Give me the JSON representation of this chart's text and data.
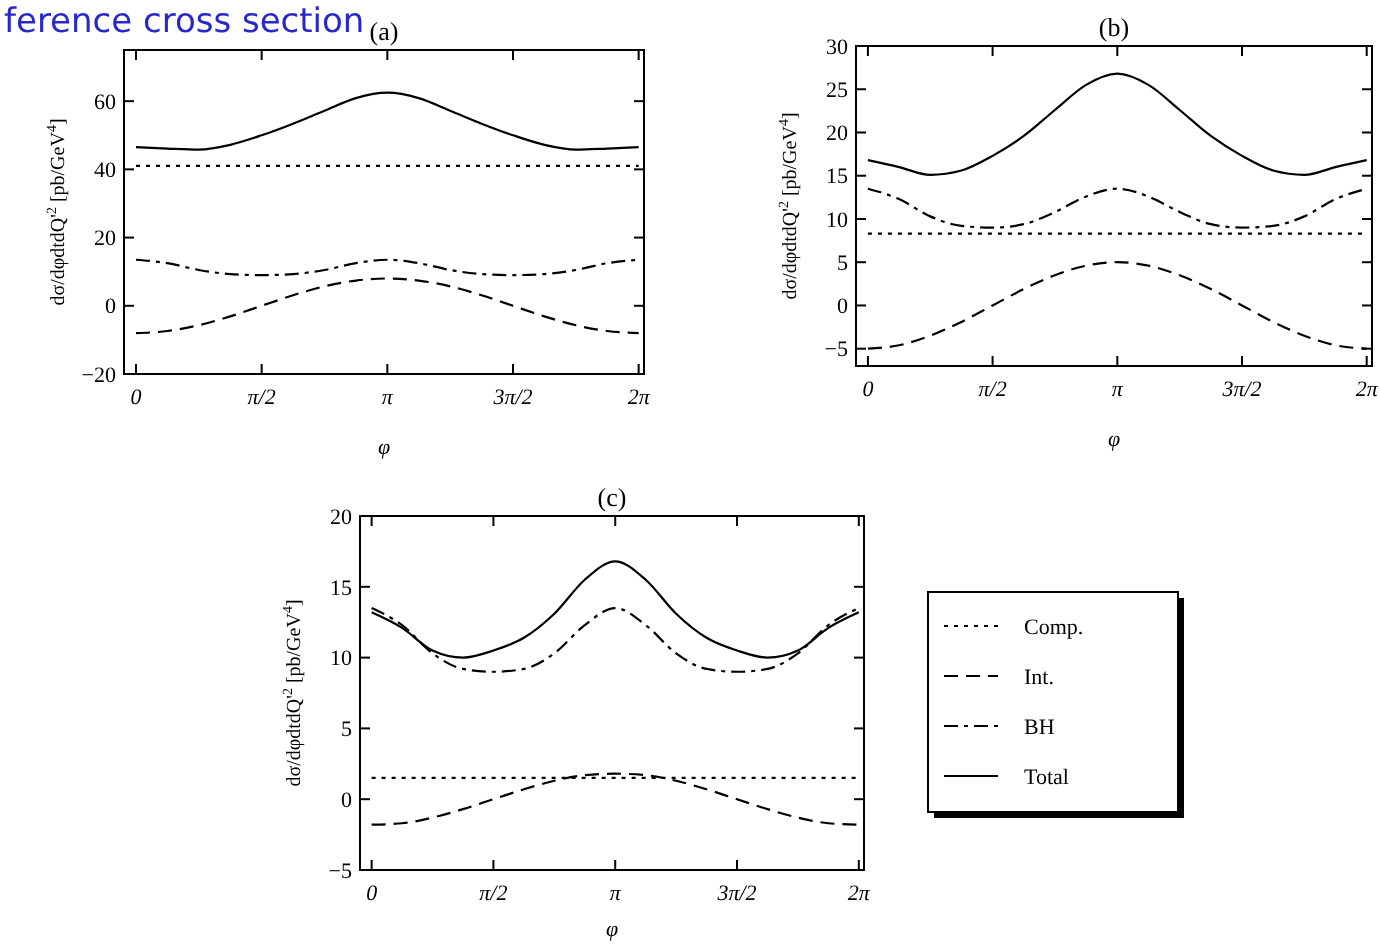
{
  "chart_data": [
    {
      "type": "line",
      "title": "(a)",
      "annotations": [
        "ference cross section"
      ],
      "xlabel": "φ",
      "ylabel": "dσ/dφdtdQ'$^{2}$ [pb/GeV$^{4}$]",
      "x": [
        0,
        0.3927,
        0.7854,
        1.1781,
        1.5708,
        1.9635,
        2.3562,
        2.7489,
        3.1416,
        3.5343,
        3.927,
        4.3197,
        4.7124,
        5.1051,
        5.4978,
        5.8905,
        6.2832
      ],
      "xlim": [
        -0.15,
        6.35
      ],
      "xticks": [
        {
          "value": 0,
          "label": "0"
        },
        {
          "value": 1.5708,
          "label": "π/2"
        },
        {
          "value": 3.1416,
          "label": "π"
        },
        {
          "value": 4.7124,
          "label": "3π/2"
        },
        {
          "value": 6.2832,
          "label": "2π"
        }
      ],
      "ylim": [
        -20,
        75
      ],
      "yticks": [
        -20,
        0,
        20,
        40,
        60
      ],
      "grid": false,
      "legend": false,
      "series": [
        {
          "color": "#000000",
          "line_style": "dotted",
          "values": [
            41,
            41,
            41,
            41,
            41,
            41,
            41,
            41,
            41,
            41,
            41,
            41,
            41,
            41,
            41,
            41,
            41
          ]
        },
        {
          "color": "#000000",
          "line_style": "dashed",
          "values": [
            -8,
            -7.4,
            -5.7,
            -3.1,
            0,
            3.1,
            5.7,
            7.4,
            8,
            7.4,
            5.7,
            3.1,
            0,
            -3.1,
            -5.7,
            -7.4,
            -8
          ]
        },
        {
          "color": "#000000",
          "line_style": "dashdot",
          "values": [
            13.5,
            12.5,
            10.5,
            9.3,
            9,
            9.3,
            10.5,
            12.5,
            13.5,
            12.5,
            10.5,
            9.3,
            9,
            9.3,
            10.5,
            12.5,
            13.5
          ]
        },
        {
          "color": "#000000",
          "line_style": "solid",
          "values": [
            46.5,
            46.1,
            45.8,
            47.2,
            50,
            53.4,
            57.2,
            60.9,
            62.5,
            60.9,
            57.2,
            53.4,
            50,
            47.2,
            45.8,
            46.1,
            46.5
          ]
        }
      ]
    },
    {
      "type": "line",
      "title": "(b)",
      "xlabel": "φ",
      "ylabel": "dσ/dφdtdQ'$^{2}$ [pb/GeV$^{4}$]",
      "x": [
        0,
        0.3927,
        0.7854,
        1.1781,
        1.5708,
        1.9635,
        2.3562,
        2.7489,
        3.1416,
        3.5343,
        3.927,
        4.3197,
        4.7124,
        5.1051,
        5.4978,
        5.8905,
        6.2832
      ],
      "xlim": [
        -0.15,
        6.35
      ],
      "xticks": [
        {
          "value": 0,
          "label": "0"
        },
        {
          "value": 1.5708,
          "label": "π/2"
        },
        {
          "value": 3.1416,
          "label": "π"
        },
        {
          "value": 4.7124,
          "label": "3π/2"
        },
        {
          "value": 6.2832,
          "label": "2π"
        }
      ],
      "ylim": [
        -7,
        30
      ],
      "yticks": [
        -5,
        0,
        5,
        10,
        15,
        20,
        25,
        30
      ],
      "grid": false,
      "legend": false,
      "series": [
        {
          "color": "#000000",
          "line_style": "dotted",
          "values": [
            8.3,
            8.3,
            8.3,
            8.3,
            8.3,
            8.3,
            8.3,
            8.3,
            8.3,
            8.3,
            8.3,
            8.3,
            8.3,
            8.3,
            8.3,
            8.3,
            8.3
          ]
        },
        {
          "color": "#000000",
          "line_style": "dashed",
          "values": [
            -5,
            -4.6,
            -3.5,
            -1.9,
            0,
            1.9,
            3.5,
            4.6,
            5,
            4.6,
            3.5,
            1.9,
            0,
            -1.9,
            -3.5,
            -4.6,
            -5
          ]
        },
        {
          "color": "#000000",
          "line_style": "dashdot",
          "values": [
            13.5,
            12.3,
            10.3,
            9.2,
            9,
            9.4,
            10.8,
            12.6,
            13.5,
            12.6,
            10.8,
            9.4,
            9,
            9.2,
            10.3,
            12.3,
            13.5
          ]
        },
        {
          "color": "#000000",
          "line_style": "solid",
          "values": [
            16.8,
            16,
            15.1,
            15.6,
            17.3,
            19.6,
            22.6,
            25.5,
            26.8,
            25.5,
            22.6,
            19.6,
            17.3,
            15.6,
            15.1,
            16,
            16.8
          ]
        }
      ]
    },
    {
      "type": "line",
      "title": "(c)",
      "xlabel": "φ",
      "ylabel": "dσ/dφdtdQ'$^{2}$ [pb/GeV$^{4}$]",
      "x": [
        0,
        0.3927,
        0.7854,
        1.1781,
        1.5708,
        1.9635,
        2.3562,
        2.7489,
        3.1416,
        3.5343,
        3.927,
        4.3197,
        4.7124,
        5.1051,
        5.4978,
        5.8905,
        6.2832
      ],
      "xlim": [
        -0.15,
        6.35
      ],
      "xticks": [
        {
          "value": 0,
          "label": "0"
        },
        {
          "value": 1.5708,
          "label": "π/2"
        },
        {
          "value": 3.1416,
          "label": "π"
        },
        {
          "value": 4.7124,
          "label": "3π/2"
        },
        {
          "value": 6.2832,
          "label": "2π"
        }
      ],
      "ylim": [
        -5,
        20
      ],
      "yticks": [
        -5,
        0,
        5,
        10,
        15,
        20
      ],
      "grid": false,
      "legend": "right",
      "series": [
        {
          "name": "Comp.",
          "color": "#000000",
          "line_style": "dotted",
          "values": [
            1.5,
            1.5,
            1.5,
            1.5,
            1.5,
            1.5,
            1.5,
            1.5,
            1.5,
            1.5,
            1.5,
            1.5,
            1.5,
            1.5,
            1.5,
            1.5,
            1.5
          ]
        },
        {
          "name": "Int.",
          "color": "#000000",
          "line_style": "dashed",
          "values": [
            -1.8,
            -1.7,
            -1.3,
            -0.7,
            0,
            0.7,
            1.3,
            1.7,
            1.8,
            1.7,
            1.3,
            0.7,
            0,
            -0.7,
            -1.3,
            -1.7,
            -1.8
          ]
        },
        {
          "name": "BH",
          "color": "#000000",
          "line_style": "dashdot",
          "values": [
            13.5,
            12.3,
            10.3,
            9.2,
            9,
            9.2,
            10.3,
            12.3,
            13.5,
            12.3,
            10.3,
            9.2,
            9,
            9.2,
            10.3,
            12.3,
            13.5
          ]
        },
        {
          "name": "Total",
          "color": "#000000",
          "line_style": "solid",
          "values": [
            13.2,
            12.1,
            10.5,
            10,
            10.5,
            11.4,
            13.1,
            15.5,
            16.8,
            15.5,
            13.1,
            11.4,
            10.5,
            10,
            10.5,
            12.1,
            13.2
          ]
        }
      ]
    }
  ]
}
